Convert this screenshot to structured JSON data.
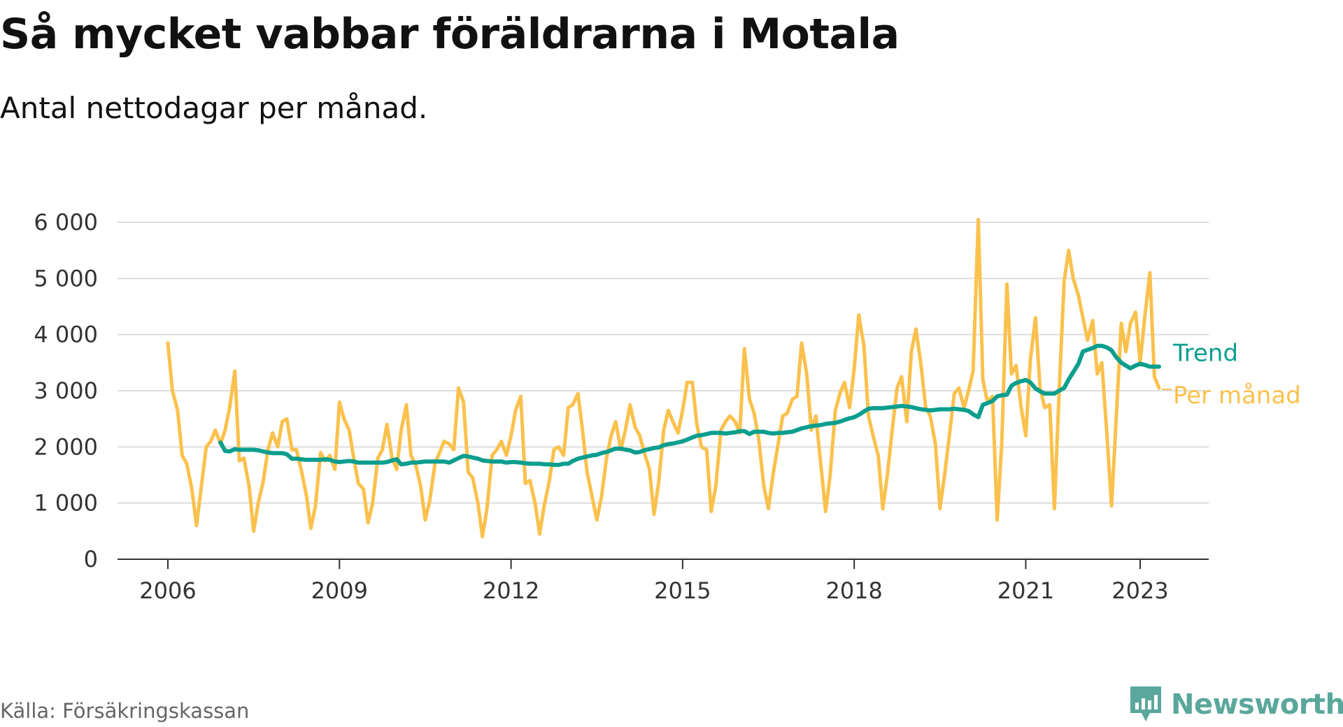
{
  "title": "Så mycket vabbar föräldrarna i Motala",
  "subtitle": "Antal nettodagar per månad.",
  "source": "Källa: Försäkringskassan",
  "brand": {
    "name": "Newsworthy",
    "icon": "newsworthy-logo-icon"
  },
  "colors": {
    "per_month": "#fbc14d",
    "trend": "#0b9e8e",
    "grid": "#dddddd",
    "axis": "#333333",
    "brand": "#5aa79b"
  },
  "chart_data": {
    "type": "line",
    "xlabel": "",
    "ylabel": "",
    "ylim": [
      0,
      6000
    ],
    "xlim": [
      2006,
      2024.1
    ],
    "y_ticks": [
      0,
      1000,
      2000,
      3000,
      4000,
      5000,
      6000
    ],
    "y_tick_labels": [
      "0",
      "1 000",
      "2 000",
      "3 000",
      "4 000",
      "5 000",
      "6 000"
    ],
    "x_ticks": [
      2006,
      2009,
      2012,
      2015,
      2018,
      2021,
      2023
    ],
    "x_tick_labels": [
      "2006",
      "2009",
      "2012",
      "2015",
      "2018",
      "2021",
      "2023"
    ],
    "grid": true,
    "legend": "direct labels at line ends",
    "series": [
      {
        "name": "Per månad",
        "x": [
          2006.0,
          2006.08,
          2006.17,
          2006.25,
          2006.33,
          2006.42,
          2006.5,
          2006.58,
          2006.67,
          2006.75,
          2006.83,
          2006.92,
          2007.0,
          2007.08,
          2007.17,
          2007.25,
          2007.33,
          2007.42,
          2007.5,
          2007.58,
          2007.67,
          2007.75,
          2007.83,
          2007.92,
          2008.0,
          2008.08,
          2008.17,
          2008.25,
          2008.33,
          2008.42,
          2008.5,
          2008.58,
          2008.67,
          2008.75,
          2008.83,
          2008.92,
          2009.0,
          2009.08,
          2009.17,
          2009.25,
          2009.33,
          2009.42,
          2009.5,
          2009.58,
          2009.67,
          2009.75,
          2009.83,
          2009.92,
          2010.0,
          2010.08,
          2010.17,
          2010.25,
          2010.33,
          2010.42,
          2010.5,
          2010.58,
          2010.67,
          2010.75,
          2010.83,
          2010.92,
          2011.0,
          2011.08,
          2011.17,
          2011.25,
          2011.33,
          2011.42,
          2011.5,
          2011.58,
          2011.67,
          2011.75,
          2011.83,
          2011.92,
          2012.0,
          2012.08,
          2012.17,
          2012.25,
          2012.33,
          2012.42,
          2012.5,
          2012.58,
          2012.67,
          2012.75,
          2012.83,
          2012.92,
          2013.0,
          2013.08,
          2013.17,
          2013.25,
          2013.33,
          2013.42,
          2013.5,
          2013.58,
          2013.67,
          2013.75,
          2013.83,
          2013.92,
          2014.0,
          2014.08,
          2014.17,
          2014.25,
          2014.33,
          2014.42,
          2014.5,
          2014.58,
          2014.67,
          2014.75,
          2014.83,
          2014.92,
          2015.0,
          2015.08,
          2015.17,
          2015.25,
          2015.33,
          2015.42,
          2015.5,
          2015.58,
          2015.67,
          2015.75,
          2015.83,
          2015.92,
          2016.0,
          2016.08,
          2016.17,
          2016.25,
          2016.33,
          2016.42,
          2016.5,
          2016.58,
          2016.67,
          2016.75,
          2016.83,
          2016.92,
          2017.0,
          2017.08,
          2017.17,
          2017.25,
          2017.33,
          2017.42,
          2017.5,
          2017.58,
          2017.67,
          2017.75,
          2017.83,
          2017.92,
          2018.0,
          2018.08,
          2018.17,
          2018.25,
          2018.33,
          2018.42,
          2018.5,
          2018.58,
          2018.67,
          2018.75,
          2018.83,
          2018.92,
          2019.0,
          2019.08,
          2019.17,
          2019.25,
          2019.33,
          2019.42,
          2019.5,
          2019.58,
          2019.67,
          2019.75,
          2019.83,
          2019.92,
          2020.0,
          2020.08,
          2020.17,
          2020.25,
          2020.33,
          2020.42,
          2020.5,
          2020.58,
          2020.67,
          2020.75,
          2020.83,
          2020.92,
          2021.0,
          2021.08,
          2021.17,
          2021.25,
          2021.33,
          2021.42,
          2021.5,
          2021.58,
          2021.67,
          2021.75,
          2021.83,
          2021.92,
          2022.0,
          2022.08,
          2022.17,
          2022.25,
          2022.33,
          2022.42,
          2022.5,
          2022.58,
          2022.67,
          2022.75,
          2022.83,
          2022.92,
          2023.0,
          2023.08,
          2023.17,
          2023.25,
          2023.33
        ],
        "values": [
          3850,
          3000,
          2650,
          1850,
          1700,
          1250,
          600,
          1250,
          2000,
          2100,
          2300,
          2050,
          2300,
          2700,
          3350,
          1750,
          1800,
          1300,
          500,
          1000,
          1400,
          1950,
          2250,
          2000,
          2450,
          2500,
          1950,
          1950,
          1600,
          1150,
          550,
          950,
          1900,
          1750,
          1850,
          1600,
          2800,
          2500,
          2300,
          1800,
          1350,
          1250,
          650,
          1000,
          1800,
          1950,
          2400,
          1800,
          1600,
          2300,
          2750,
          1850,
          1700,
          1300,
          700,
          1050,
          1700,
          1900,
          2100,
          2050,
          1950,
          3050,
          2800,
          1550,
          1450,
          1000,
          400,
          900,
          1850,
          1950,
          2100,
          1850,
          2200,
          2650,
          2900,
          1350,
          1400,
          1000,
          450,
          950,
          1400,
          1950,
          2000,
          1850,
          2700,
          2750,
          2950,
          2300,
          1550,
          1100,
          700,
          1100,
          1800,
          2200,
          2450,
          1950,
          2300,
          2750,
          2350,
          2200,
          1900,
          1600,
          800,
          1350,
          2300,
          2650,
          2450,
          2250,
          2650,
          3150,
          3150,
          2400,
          2000,
          1950,
          850,
          1300,
          2300,
          2450,
          2550,
          2450,
          2250,
          3750,
          2850,
          2600,
          2150,
          1300,
          900,
          1500,
          2050,
          2550,
          2600,
          2850,
          2900,
          3850,
          3300,
          2300,
          2550,
          1650,
          850,
          1500,
          2650,
          2950,
          3150,
          2700,
          3400,
          4350,
          3800,
          2550,
          2200,
          1850,
          900,
          1500,
          2350,
          3050,
          3250,
          2450,
          3700,
          4100,
          3450,
          2700,
          2550,
          2050,
          900,
          1500,
          2250,
          2950,
          3050,
          2700,
          3000,
          3350,
          6050,
          3200,
          2800,
          2900,
          700,
          2050,
          4900,
          3300,
          3450,
          2700,
          2200,
          3550,
          4300,
          3050,
          2700,
          2750,
          900,
          2900,
          4950,
          5500,
          5000,
          4700,
          4300,
          3900,
          4250,
          3300,
          3500,
          2200,
          950,
          2500,
          4200,
          3700,
          4200,
          4400,
          3500,
          4300,
          5100,
          3250,
          3050
        ]
      },
      {
        "name": "Trend",
        "x": [
          2006.92,
          2007.0,
          2007.08,
          2007.17,
          2007.25,
          2007.33,
          2007.42,
          2007.5,
          2007.58,
          2007.67,
          2007.75,
          2007.83,
          2007.92,
          2008.0,
          2008.08,
          2008.17,
          2008.25,
          2008.33,
          2008.42,
          2008.5,
          2008.58,
          2008.67,
          2008.75,
          2008.83,
          2008.92,
          2009.0,
          2009.08,
          2009.17,
          2009.25,
          2009.33,
          2009.42,
          2009.5,
          2009.58,
          2009.67,
          2009.75,
          2009.83,
          2009.92,
          2010.0,
          2010.08,
          2010.17,
          2010.25,
          2010.33,
          2010.42,
          2010.5,
          2010.58,
          2010.67,
          2010.75,
          2010.83,
          2010.92,
          2011.0,
          2011.08,
          2011.17,
          2011.25,
          2011.33,
          2011.42,
          2011.5,
          2011.58,
          2011.67,
          2011.75,
          2011.83,
          2011.92,
          2012.0,
          2012.08,
          2012.17,
          2012.25,
          2012.33,
          2012.42,
          2012.5,
          2012.58,
          2012.67,
          2012.75,
          2012.83,
          2012.92,
          2013.0,
          2013.08,
          2013.17,
          2013.25,
          2013.33,
          2013.42,
          2013.5,
          2013.58,
          2013.67,
          2013.75,
          2013.83,
          2013.92,
          2014.0,
          2014.08,
          2014.17,
          2014.25,
          2014.33,
          2014.42,
          2014.5,
          2014.58,
          2014.67,
          2014.75,
          2014.83,
          2014.92,
          2015.0,
          2015.08,
          2015.17,
          2015.25,
          2015.33,
          2015.42,
          2015.5,
          2015.58,
          2015.67,
          2015.75,
          2015.83,
          2015.92,
          2016.0,
          2016.08,
          2016.17,
          2016.25,
          2016.33,
          2016.42,
          2016.5,
          2016.58,
          2016.67,
          2016.75,
          2016.83,
          2016.92,
          2017.0,
          2017.08,
          2017.17,
          2017.25,
          2017.33,
          2017.42,
          2017.5,
          2017.58,
          2017.67,
          2017.75,
          2017.83,
          2017.92,
          2018.0,
          2018.08,
          2018.17,
          2018.25,
          2018.33,
          2018.42,
          2018.5,
          2018.58,
          2018.67,
          2018.75,
          2018.83,
          2018.92,
          2019.0,
          2019.08,
          2019.17,
          2019.25,
          2019.33,
          2019.42,
          2019.5,
          2019.58,
          2019.67,
          2019.75,
          2019.83,
          2019.92,
          2020.0,
          2020.08,
          2020.17,
          2020.25,
          2020.33,
          2020.42,
          2020.5,
          2020.58,
          2020.67,
          2020.75,
          2020.83,
          2020.92,
          2021.0,
          2021.08,
          2021.17,
          2021.25,
          2021.33,
          2021.42,
          2021.5,
          2021.58,
          2021.67,
          2021.75,
          2021.83,
          2021.92,
          2022.0,
          2022.08,
          2022.17,
          2022.25,
          2022.33,
          2022.42,
          2022.5,
          2022.58,
          2022.67,
          2022.75,
          2022.83,
          2022.92,
          2023.0,
          2023.08,
          2023.17,
          2023.25,
          2023.33
        ],
        "values": [
          2080,
          1930,
          1920,
          1960,
          1950,
          1950,
          1950,
          1950,
          1940,
          1920,
          1900,
          1890,
          1890,
          1890,
          1870,
          1790,
          1790,
          1780,
          1770,
          1770,
          1770,
          1770,
          1780,
          1770,
          1740,
          1730,
          1740,
          1750,
          1740,
          1720,
          1720,
          1720,
          1720,
          1720,
          1720,
          1730,
          1760,
          1780,
          1690,
          1700,
          1720,
          1720,
          1730,
          1740,
          1740,
          1740,
          1740,
          1740,
          1720,
          1760,
          1800,
          1840,
          1830,
          1810,
          1790,
          1760,
          1750,
          1740,
          1740,
          1740,
          1720,
          1730,
          1730,
          1720,
          1710,
          1700,
          1700,
          1700,
          1690,
          1690,
          1680,
          1680,
          1700,
          1700,
          1750,
          1790,
          1810,
          1830,
          1850,
          1860,
          1890,
          1910,
          1940,
          1970,
          1970,
          1950,
          1940,
          1900,
          1910,
          1940,
          1960,
          1980,
          1990,
          2030,
          2050,
          2060,
          2080,
          2100,
          2130,
          2170,
          2200,
          2210,
          2230,
          2250,
          2250,
          2250,
          2240,
          2250,
          2260,
          2280,
          2280,
          2230,
          2270,
          2270,
          2270,
          2250,
          2240,
          2250,
          2250,
          2260,
          2270,
          2300,
          2330,
          2350,
          2370,
          2380,
          2390,
          2410,
          2420,
          2430,
          2450,
          2480,
          2510,
          2530,
          2570,
          2630,
          2680,
          2690,
          2690,
          2690,
          2700,
          2710,
          2720,
          2730,
          2720,
          2710,
          2690,
          2670,
          2660,
          2650,
          2660,
          2670,
          2670,
          2670,
          2680,
          2670,
          2660,
          2640,
          2580,
          2530,
          2750,
          2780,
          2820,
          2900,
          2920,
          2930,
          3090,
          3140,
          3170,
          3190,
          3150,
          3040,
          2990,
          2950,
          2950,
          2950,
          3000,
          3050,
          3200,
          3330,
          3480,
          3700,
          3730,
          3760,
          3800,
          3800,
          3770,
          3720,
          3600,
          3500,
          3450,
          3400,
          3450,
          3480,
          3460,
          3430,
          3430,
          3430
        ]
      }
    ]
  }
}
